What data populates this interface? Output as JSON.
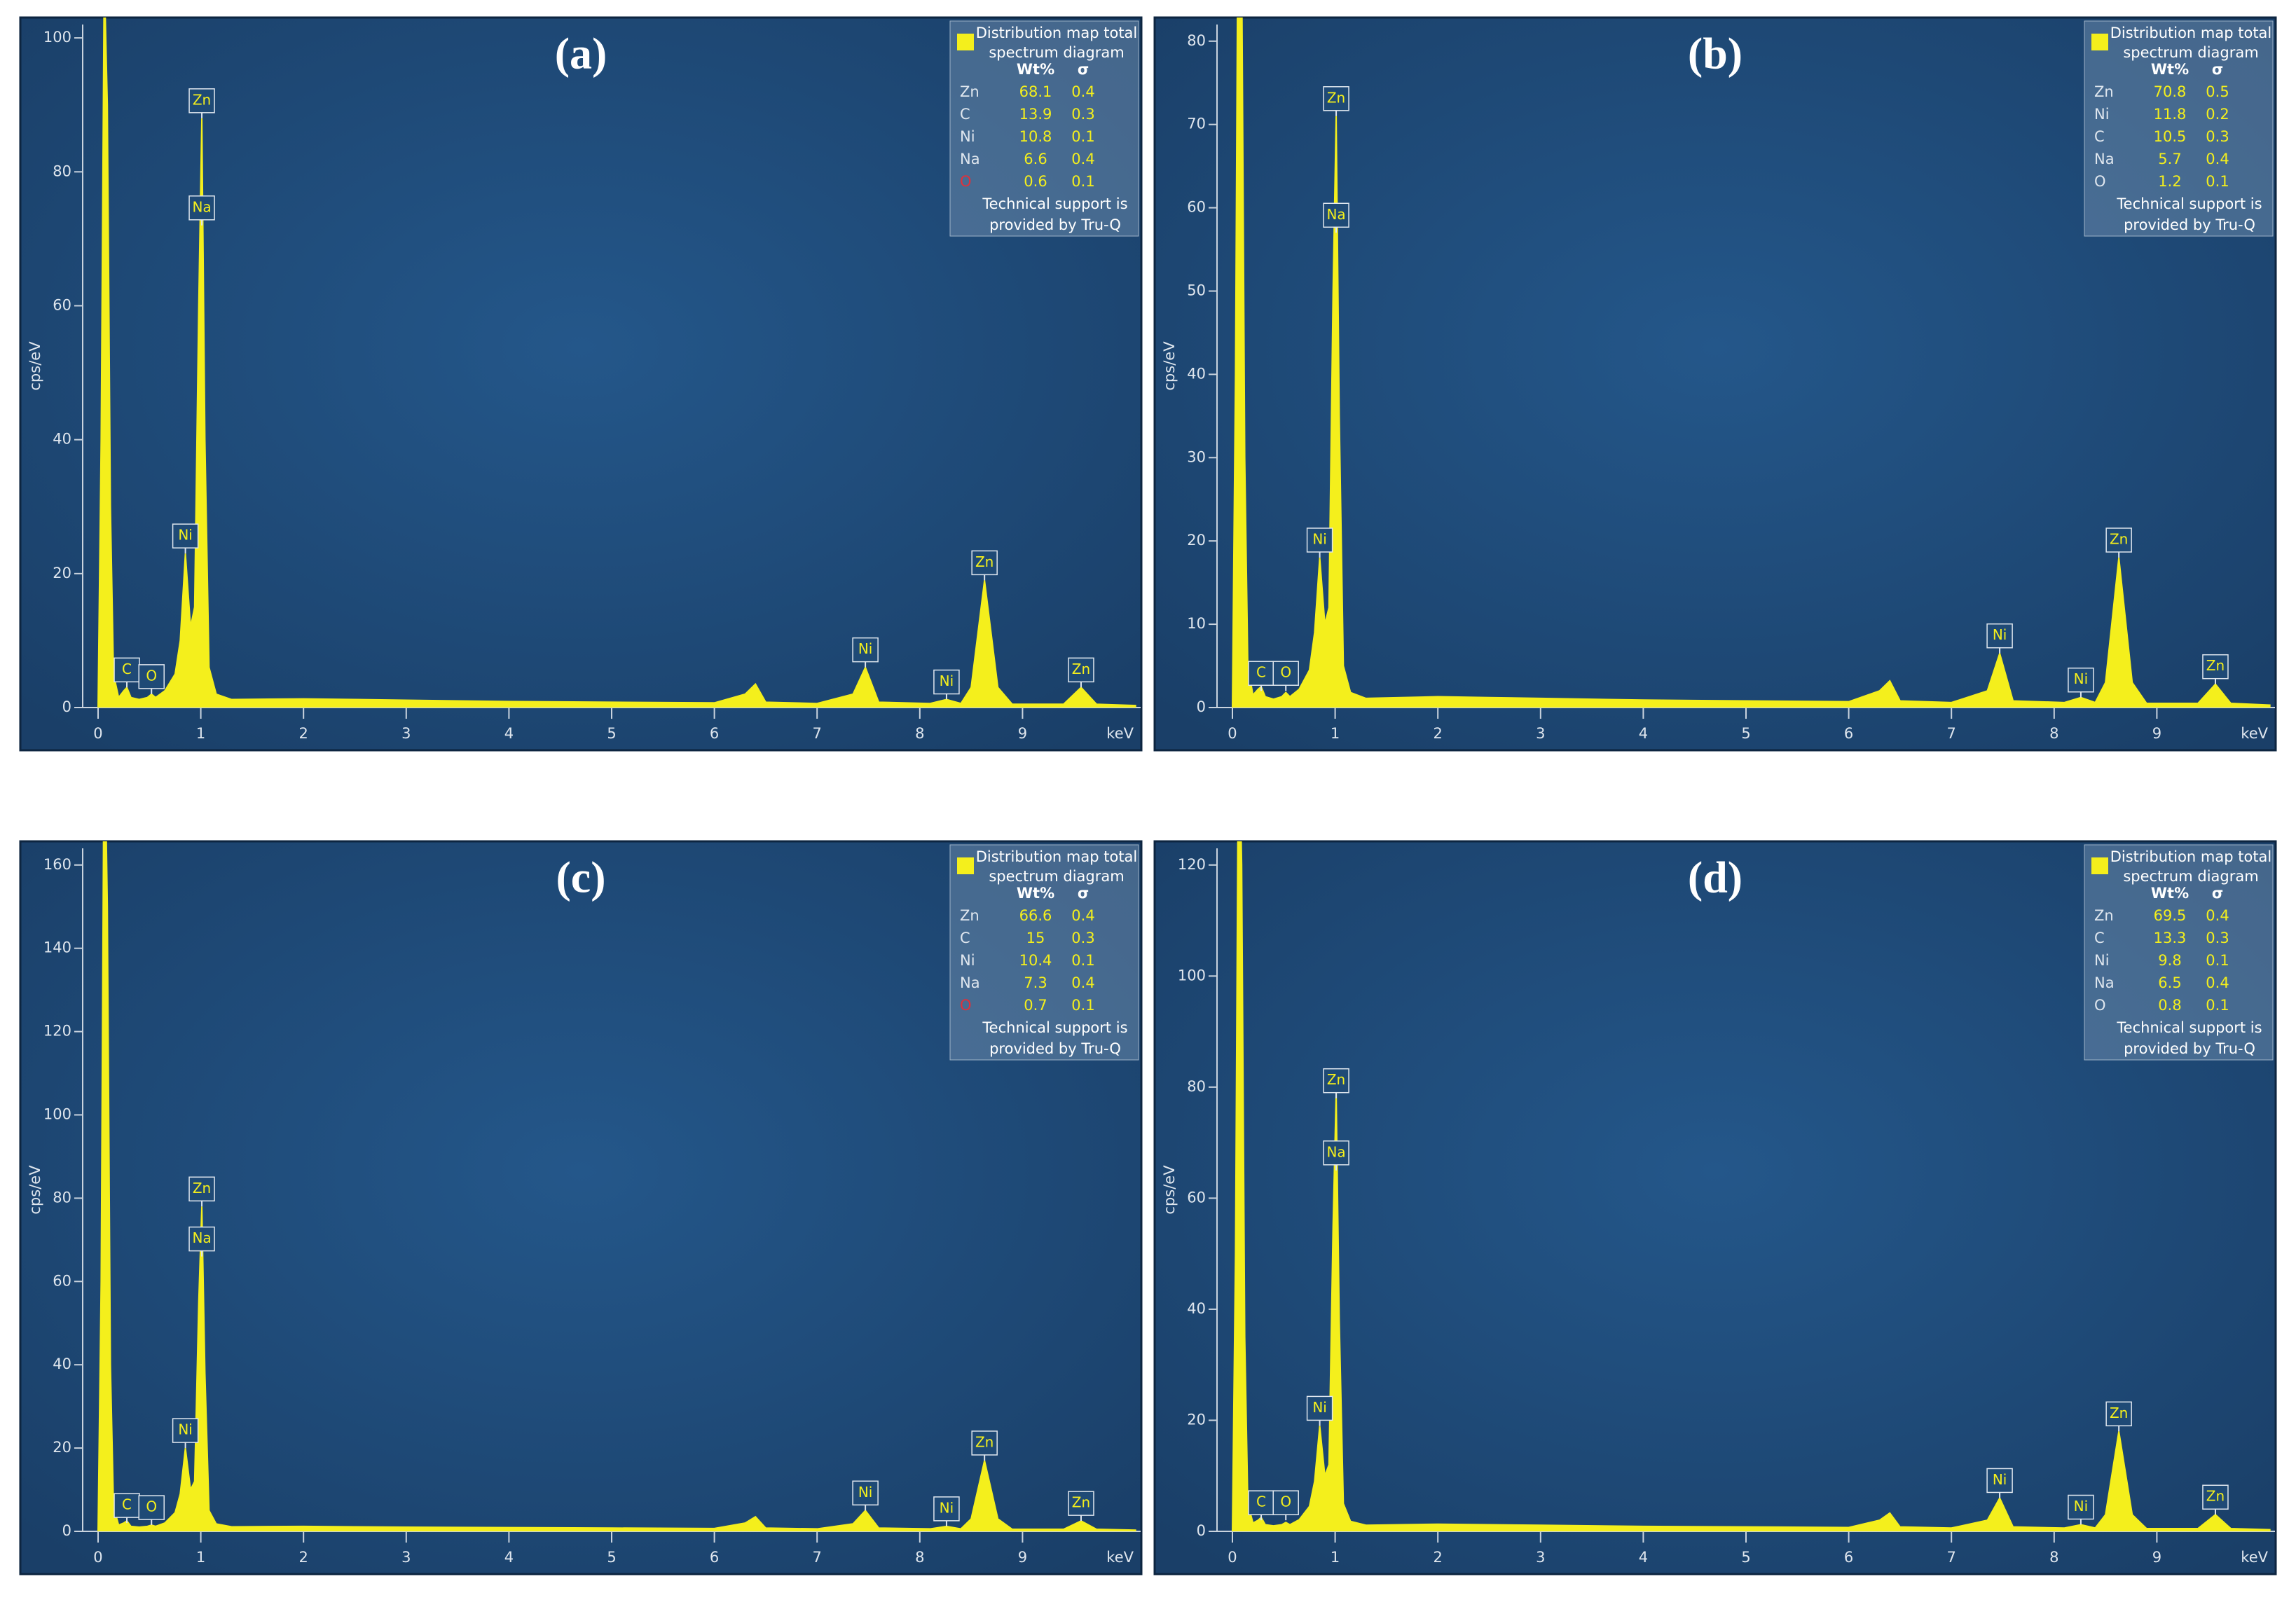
{
  "chart_data": [
    {
      "type": "area",
      "title": "(a)",
      "x_label": "keV",
      "y_label": "cps/eV",
      "color": "#f4ef1c",
      "x": [
        0,
        0.03,
        0.06,
        0.09,
        0.12,
        0.15,
        0.2,
        0.25,
        0.28,
        0.32,
        0.4,
        0.48,
        0.52,
        0.56,
        0.65,
        0.75,
        0.8,
        0.85,
        0.9,
        0.94,
        0.98,
        1.01,
        1.04,
        1.08,
        1.15,
        1.3,
        2,
        2.5,
        3,
        4,
        5,
        6,
        6.3,
        6.4,
        6.5,
        7,
        7.35,
        7.47,
        7.6,
        8.1,
        8.26,
        8.4,
        8.5,
        8.63,
        8.76,
        8.9,
        9.4,
        9.57,
        9.72,
        10.1
      ],
      "values": [
        0,
        40,
        110,
        90,
        30,
        5,
        1.5,
        2.5,
        3,
        1.5,
        1.2,
        1.5,
        2,
        1.5,
        2.5,
        5,
        10,
        23,
        12,
        15,
        60,
        88,
        40,
        6,
        2,
        1.2,
        1.3,
        1.2,
        1.1,
        0.9,
        0.8,
        0.7,
        2,
        3.5,
        0.8,
        0.6,
        2,
        6,
        0.8,
        0.6,
        1.2,
        0.6,
        3,
        19,
        3,
        0.5,
        0.5,
        3,
        0.5,
        0.3
      ],
      "xlim": [
        -0.15,
        10.15
      ],
      "ylim": [
        0,
        102
      ],
      "xticks": [
        0,
        1,
        2,
        3,
        4,
        5,
        6,
        7,
        8,
        9
      ],
      "yticks": [
        0,
        20,
        40,
        60,
        80,
        100
      ],
      "peak_labels": [
        {
          "text": "C",
          "x": 0.28,
          "y": 3
        },
        {
          "text": "O",
          "x": 0.52,
          "y": 2
        },
        {
          "text": "Ni",
          "x": 0.85,
          "y": 23
        },
        {
          "text": "Zn",
          "x": 1.01,
          "y": 88
        },
        {
          "text": "Na",
          "x": 1.01,
          "y": 72
        },
        {
          "text": "Ni",
          "x": 7.47,
          "y": 6
        },
        {
          "text": "Ni",
          "x": 8.26,
          "y": 1.2
        },
        {
          "text": "Zn",
          "x": 8.63,
          "y": 19
        },
        {
          "text": "Zn",
          "x": 9.57,
          "y": 3
        }
      ],
      "legend": {
        "title": [
          "Distribution map total",
          "spectrum diagram"
        ],
        "columns": [
          "Wt%",
          "σ"
        ],
        "rows": [
          {
            "element": "Zn",
            "wt": 68.1,
            "sigma": 0.4,
            "color": "#dfe6ee"
          },
          {
            "element": "C",
            "wt": 13.9,
            "sigma": 0.3,
            "color": "#dfe6ee"
          },
          {
            "element": "Ni",
            "wt": 10.8,
            "sigma": 0.1,
            "color": "#dfe6ee"
          },
          {
            "element": "Na",
            "wt": 6.6,
            "sigma": 0.4,
            "color": "#dfe6ee"
          },
          {
            "element": "O",
            "wt": 0.6,
            "sigma": 0.1,
            "color": "#e0303a"
          }
        ],
        "note": [
          "Technical support is",
          "provided by Tru-Q"
        ]
      }
    },
    {
      "type": "area",
      "title": "(b)",
      "x_label": "keV",
      "y_label": "cps/eV",
      "color": "#f4ef1c",
      "x": [
        0,
        0.03,
        0.06,
        0.09,
        0.12,
        0.15,
        0.2,
        0.25,
        0.28,
        0.32,
        0.4,
        0.48,
        0.52,
        0.56,
        0.65,
        0.75,
        0.8,
        0.85,
        0.9,
        0.94,
        0.98,
        1.01,
        1.04,
        1.08,
        1.15,
        1.3,
        2,
        2.5,
        3,
        4,
        5,
        6,
        6.3,
        6.4,
        6.5,
        7,
        7.35,
        7.47,
        7.6,
        8.1,
        8.26,
        8.4,
        8.5,
        8.63,
        8.76,
        8.9,
        9.4,
        9.57,
        9.72,
        10.1
      ],
      "values": [
        0,
        40,
        110,
        90,
        30,
        5,
        1.5,
        2.2,
        2.5,
        1.3,
        1,
        1.3,
        1.8,
        1.3,
        2.2,
        4.5,
        9,
        18,
        10,
        12,
        50,
        71,
        35,
        5,
        1.8,
        1.1,
        1.3,
        1.2,
        1.1,
        0.9,
        0.8,
        0.7,
        2,
        3.2,
        0.8,
        0.6,
        2,
        6.5,
        0.8,
        0.6,
        1.2,
        0.6,
        3,
        18,
        3,
        0.5,
        0.5,
        2.8,
        0.5,
        0.3
      ],
      "xlim": [
        -0.15,
        10.15
      ],
      "ylim": [
        0,
        82
      ],
      "xticks": [
        0,
        1,
        2,
        3,
        4,
        5,
        6,
        7,
        8,
        9
      ],
      "yticks": [
        0,
        10,
        20,
        30,
        40,
        50,
        60,
        70,
        80
      ],
      "peak_labels": [
        {
          "text": "C",
          "x": 0.28,
          "y": 2
        },
        {
          "text": "O",
          "x": 0.52,
          "y": 2
        },
        {
          "text": "Ni",
          "x": 0.85,
          "y": 18
        },
        {
          "text": "Zn",
          "x": 1.01,
          "y": 71
        },
        {
          "text": "Na",
          "x": 1.01,
          "y": 57
        },
        {
          "text": "Ni",
          "x": 7.47,
          "y": 6.5
        },
        {
          "text": "Ni",
          "x": 8.26,
          "y": 1.2
        },
        {
          "text": "Zn",
          "x": 8.63,
          "y": 18
        },
        {
          "text": "Zn",
          "x": 9.57,
          "y": 2.8
        }
      ],
      "legend": {
        "title": [
          "Distribution map total",
          "spectrum diagram"
        ],
        "columns": [
          "Wt%",
          "σ"
        ],
        "rows": [
          {
            "element": "Zn",
            "wt": 70.8,
            "sigma": 0.5,
            "color": "#dfe6ee"
          },
          {
            "element": "Ni",
            "wt": 11.8,
            "sigma": 0.2,
            "color": "#dfe6ee"
          },
          {
            "element": "C",
            "wt": 10.5,
            "sigma": 0.3,
            "color": "#dfe6ee"
          },
          {
            "element": "Na",
            "wt": 5.7,
            "sigma": 0.4,
            "color": "#dfe6ee"
          },
          {
            "element": "O",
            "wt": 1.2,
            "sigma": 0.1,
            "color": "#dfe6ee"
          }
        ],
        "note": [
          "Technical support is",
          "provided by Tru-Q"
        ]
      }
    },
    {
      "type": "area",
      "title": "(c)",
      "x_label": "keV",
      "y_label": "cps/eV",
      "color": "#f4ef1c",
      "x": [
        0,
        0.03,
        0.06,
        0.09,
        0.12,
        0.15,
        0.2,
        0.25,
        0.28,
        0.32,
        0.4,
        0.48,
        0.52,
        0.56,
        0.65,
        0.75,
        0.8,
        0.85,
        0.9,
        0.94,
        0.98,
        1.01,
        1.04,
        1.08,
        1.15,
        1.3,
        2,
        2.5,
        3,
        4,
        5,
        6,
        6.3,
        6.4,
        6.5,
        7,
        7.35,
        7.47,
        7.6,
        8.1,
        8.26,
        8.4,
        8.5,
        8.63,
        8.76,
        8.9,
        9.4,
        9.57,
        9.72,
        10.1
      ],
      "values": [
        0,
        60,
        200,
        150,
        40,
        6,
        1.5,
        2,
        2.5,
        1.2,
        1,
        1.2,
        1.5,
        1.2,
        2,
        4.5,
        9,
        20,
        10,
        12,
        55,
        78,
        38,
        5,
        1.8,
        1.1,
        1.2,
        1.1,
        1,
        0.9,
        0.8,
        0.7,
        2,
        3.5,
        0.8,
        0.6,
        1.8,
        5,
        0.8,
        0.6,
        1.2,
        0.6,
        3,
        17,
        3,
        0.5,
        0.5,
        2.5,
        0.5,
        0.3
      ],
      "xlim": [
        -0.15,
        10.15
      ],
      "ylim": [
        0,
        164
      ],
      "xticks": [
        0,
        1,
        2,
        3,
        4,
        5,
        6,
        7,
        8,
        9
      ],
      "yticks": [
        0,
        20,
        40,
        60,
        80,
        100,
        120,
        140,
        160
      ],
      "peak_labels": [
        {
          "text": "C",
          "x": 0.28,
          "y": 2
        },
        {
          "text": "O",
          "x": 0.52,
          "y": 1.5
        },
        {
          "text": "Ni",
          "x": 0.85,
          "y": 20
        },
        {
          "text": "Zn",
          "x": 1.01,
          "y": 78
        },
        {
          "text": "Na",
          "x": 1.01,
          "y": 66
        },
        {
          "text": "Ni",
          "x": 7.47,
          "y": 5
        },
        {
          "text": "Ni",
          "x": 8.26,
          "y": 1.2
        },
        {
          "text": "Zn",
          "x": 8.63,
          "y": 17
        },
        {
          "text": "Zn",
          "x": 9.57,
          "y": 2.5
        }
      ],
      "legend": {
        "title": [
          "Distribution map total",
          "spectrum diagram"
        ],
        "columns": [
          "Wt%",
          "σ"
        ],
        "rows": [
          {
            "element": "Zn",
            "wt": 66.6,
            "sigma": 0.4,
            "color": "#dfe6ee"
          },
          {
            "element": "C",
            "wt": 15.0,
            "sigma": 0.3,
            "color": "#dfe6ee"
          },
          {
            "element": "Ni",
            "wt": 10.4,
            "sigma": 0.1,
            "color": "#dfe6ee"
          },
          {
            "element": "Na",
            "wt": 7.3,
            "sigma": 0.4,
            "color": "#dfe6ee"
          },
          {
            "element": "O",
            "wt": 0.7,
            "sigma": 0.1,
            "color": "#e0303a"
          }
        ],
        "note": [
          "Technical support is",
          "provided by Tru-Q"
        ]
      }
    },
    {
      "type": "area",
      "title": "(d)",
      "x_label": "keV",
      "y_label": "cps/eV",
      "color": "#f4ef1c",
      "x": [
        0,
        0.03,
        0.06,
        0.09,
        0.12,
        0.15,
        0.2,
        0.25,
        0.28,
        0.32,
        0.4,
        0.48,
        0.52,
        0.56,
        0.65,
        0.75,
        0.8,
        0.85,
        0.9,
        0.94,
        0.98,
        1.01,
        1.04,
        1.08,
        1.15,
        1.3,
        2,
        2.5,
        3,
        4,
        5,
        6,
        6.3,
        6.4,
        6.5,
        7,
        7.35,
        7.47,
        7.6,
        8.1,
        8.26,
        8.4,
        8.5,
        8.63,
        8.76,
        8.9,
        9.4,
        9.57,
        9.72,
        10.1
      ],
      "values": [
        0,
        50,
        150,
        120,
        35,
        5,
        1.5,
        2,
        2.5,
        1.2,
        1,
        1.2,
        1.6,
        1.2,
        2.1,
        4.5,
        9,
        19,
        10,
        12,
        55,
        79,
        38,
        5,
        1.8,
        1.1,
        1.3,
        1.2,
        1.1,
        0.9,
        0.8,
        0.7,
        2,
        3.3,
        0.8,
        0.6,
        2,
        6,
        0.8,
        0.6,
        1.2,
        0.6,
        3,
        18,
        3,
        0.5,
        0.5,
        3,
        0.5,
        0.3
      ],
      "xlim": [
        -0.15,
        10.15
      ],
      "ylim": [
        0,
        123
      ],
      "xticks": [
        0,
        1,
        2,
        3,
        4,
        5,
        6,
        7,
        8,
        9
      ],
      "yticks": [
        0,
        20,
        40,
        60,
        80,
        100,
        120
      ],
      "peak_labels": [
        {
          "text": "C",
          "x": 0.28,
          "y": 2
        },
        {
          "text": "O",
          "x": 0.52,
          "y": 2
        },
        {
          "text": "Ni",
          "x": 0.85,
          "y": 19
        },
        {
          "text": "Zn",
          "x": 1.01,
          "y": 78
        },
        {
          "text": "Na",
          "x": 1.01,
          "y": 65
        },
        {
          "text": "Ni",
          "x": 7.47,
          "y": 6
        },
        {
          "text": "Ni",
          "x": 8.26,
          "y": 1.2
        },
        {
          "text": "Zn",
          "x": 8.63,
          "y": 18
        },
        {
          "text": "Zn",
          "x": 9.57,
          "y": 3
        }
      ],
      "legend": {
        "title": [
          "Distribution map total",
          "spectrum diagram"
        ],
        "columns": [
          "Wt%",
          "σ"
        ],
        "rows": [
          {
            "element": "Zn",
            "wt": 69.5,
            "sigma": 0.4,
            "color": "#dfe6ee"
          },
          {
            "element": "C",
            "wt": 13.3,
            "sigma": 0.3,
            "color": "#dfe6ee"
          },
          {
            "element": "Ni",
            "wt": 9.8,
            "sigma": 0.1,
            "color": "#dfe6ee"
          },
          {
            "element": "Na",
            "wt": 6.5,
            "sigma": 0.4,
            "color": "#dfe6ee"
          },
          {
            "element": "O",
            "wt": 0.8,
            "sigma": 0.1,
            "color": "#dfe6ee"
          }
        ],
        "note": [
          "Technical support is",
          "provided by Tru-Q"
        ]
      }
    }
  ]
}
